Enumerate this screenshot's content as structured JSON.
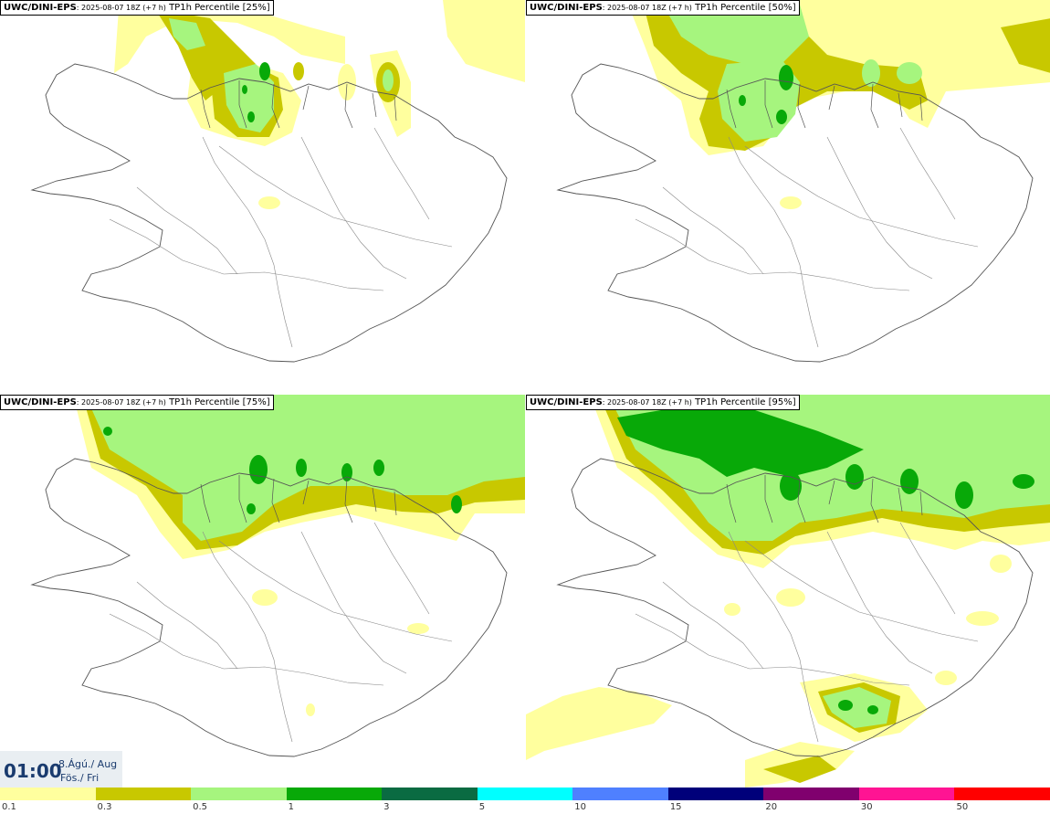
{
  "panels": [
    {
      "model": "UWC/DINI-EPS",
      "run": ": 2025-08-07 18Z (+7 h)",
      "field": " TP1h Percentile [25%]"
    },
    {
      "model": "UWC/DINI-EPS",
      "run": ": 2025-08-07 18Z (+7 h)",
      "field": " TP1h Percentile [50%]"
    },
    {
      "model": "UWC/DINI-EPS",
      "run": ": 2025-08-07 18Z (+7 h)",
      "field": " TP1h Percentile [75%]"
    },
    {
      "model": "UWC/DINI-EPS",
      "run": ": 2025-08-07 18Z (+7 h)",
      "field": " TP1h Percentile [95%]"
    }
  ],
  "valid_time": {
    "time": "01:00",
    "date": "8.Ágú./ Aug",
    "day": "Fös./ Fri"
  },
  "legend": {
    "ticks": [
      "0.1",
      "0.3",
      "0.5",
      "1",
      "3",
      "5",
      "10",
      "15",
      "20",
      "30",
      "50"
    ],
    "colors": [
      "#ffff9e",
      "#c8c800",
      "#a6f57e",
      "#08a908",
      "#0a6b42",
      "#00ffff",
      "#4f80ff",
      "#00007a",
      "#80006e",
      "#ff1493",
      "#ff0000"
    ]
  }
}
